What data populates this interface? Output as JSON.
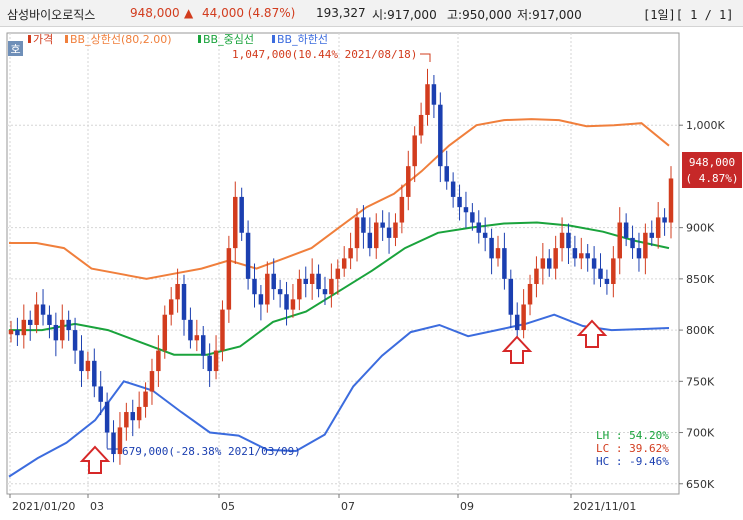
{
  "header": {
    "stock_name": "삼성바이오로직스",
    "price": "948,000",
    "up_arrow": "▲",
    "change": "44,000 (4.87%)",
    "volume": "193,327",
    "open": "시:917,000",
    "high": "고:950,000",
    "low": "저:917,000",
    "period": "[1일][ 1 / 1]"
  },
  "badge": "호",
  "legend": {
    "price": "가격",
    "upper": "BB_상한선(80,2.00)",
    "middle": "BB_중심선",
    "lower": "BB_하한선"
  },
  "annotations": {
    "high": "1,047,000(10.44% 2021/08/18)",
    "low": "679,000(-28.38% 2021/03/09)"
  },
  "current_price_tag": {
    "price": "948,000",
    "pct": "( 4.87%)"
  },
  "stats": {
    "lh": "LH :  54.20%",
    "lc": "LC :  39.62%",
    "hc": "HC :  -9.46%"
  },
  "colors": {
    "up": "#d23c1e",
    "down": "#1b3fb0",
    "upper_band": "#f07f3c",
    "middle_band": "#1aa33c",
    "lower_band": "#3c6cde",
    "arrow": "#d62828",
    "lh": "#1aa33c",
    "lc": "#d23c1e",
    "hc": "#1b3fb0"
  },
  "chart_data": {
    "type": "candlestick",
    "x_ticks": [
      "2021/01/20",
      "03",
      "05",
      "07",
      "09",
      "2021/11/01"
    ],
    "y_ticks": [
      "650K",
      "700K",
      "750K",
      "800K",
      "850K",
      "900K",
      "1,000K"
    ],
    "ylim": [
      640000,
      1090000
    ],
    "series": [
      {
        "name": "가격",
        "close": [
          800000,
          795000,
          810000,
          805000,
          825000,
          815000,
          805000,
          790000,
          810000,
          800000,
          780000,
          760000,
          770000,
          745000,
          730000,
          700000,
          679000,
          705000,
          720000,
          712000,
          725000,
          740000,
          760000,
          780000,
          815000,
          830000,
          845000,
          810000,
          790000,
          795000,
          775000,
          760000,
          780000,
          820000,
          880000,
          930000,
          895000,
          850000,
          835000,
          825000,
          855000,
          840000,
          835000,
          820000,
          830000,
          850000,
          845000,
          855000,
          840000,
          835000,
          850000,
          860000,
          870000,
          880000,
          910000,
          895000,
          880000,
          905000,
          900000,
          890000,
          905000,
          930000,
          960000,
          990000,
          1010000,
          1040000,
          1020000,
          960000,
          945000,
          930000,
          920000,
          915000,
          905000,
          895000,
          890000,
          870000,
          880000,
          850000,
          815000,
          800000,
          825000,
          845000,
          860000,
          870000,
          860000,
          880000,
          895000,
          880000,
          870000,
          875000,
          870000,
          860000,
          850000,
          845000,
          870000,
          905000,
          890000,
          880000,
          870000,
          895000,
          890000,
          910000,
          905000,
          948000
        ]
      },
      {
        "name": "BB_상한선(80,2.00)",
        "values": [
          885000,
          885000,
          880000,
          860000,
          855000,
          850000,
          855000,
          860000,
          868000,
          860000,
          870000,
          880000,
          900000,
          920000,
          933000,
          955000,
          980000,
          1000000,
          1005000,
          1006000,
          1005000,
          999000,
          1000000,
          1002000,
          980000
        ]
      },
      {
        "name": "BB_중심선",
        "values": [
          800000,
          800000,
          806000,
          800000,
          788000,
          776000,
          776000,
          784000,
          808000,
          818000,
          838000,
          858000,
          880000,
          895000,
          900000,
          904000,
          905000,
          902000,
          896000,
          887000,
          880000
        ]
      },
      {
        "name": "BB_하한선",
        "values": [
          657000,
          675000,
          690000,
          712000,
          750000,
          741000,
          720000,
          700000,
          697000,
          683000,
          682000,
          698000,
          745000,
          775000,
          798000,
          805000,
          794000,
          800000,
          806000,
          815000,
          804000,
          800000,
          801000,
          802000
        ]
      }
    ]
  }
}
